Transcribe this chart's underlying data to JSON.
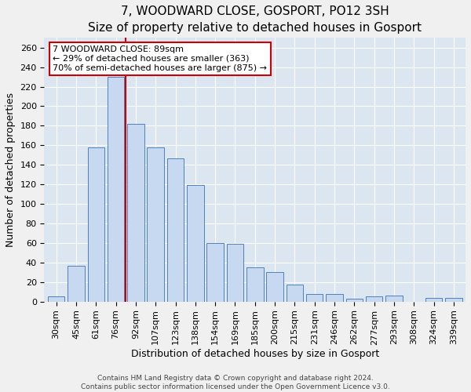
{
  "title": "7, WOODWARD CLOSE, GOSPORT, PO12 3SH",
  "subtitle": "Size of property relative to detached houses in Gosport",
  "xlabel": "Distribution of detached houses by size in Gosport",
  "ylabel": "Number of detached properties",
  "categories": [
    "30sqm",
    "45sqm",
    "61sqm",
    "76sqm",
    "92sqm",
    "107sqm",
    "123sqm",
    "138sqm",
    "154sqm",
    "169sqm",
    "185sqm",
    "200sqm",
    "215sqm",
    "231sqm",
    "246sqm",
    "262sqm",
    "277sqm",
    "293sqm",
    "308sqm",
    "324sqm",
    "339sqm"
  ],
  "values": [
    5,
    37,
    158,
    230,
    182,
    158,
    147,
    119,
    60,
    59,
    35,
    30,
    17,
    8,
    8,
    3,
    5,
    6,
    0,
    4,
    4
  ],
  "bar_color": "#c6d9f0",
  "bar_edge_color": "#4f81bd",
  "annotation_line_bar_index": 3,
  "annotation_text_lines": [
    "7 WOODWARD CLOSE: 89sqm",
    "← 29% of detached houses are smaller (363)",
    "70% of semi-detached houses are larger (875) →"
  ],
  "annotation_box_color": "#ffffff",
  "annotation_box_edge_color": "#cc0000",
  "ylim": [
    0,
    270
  ],
  "yticks": [
    0,
    20,
    40,
    60,
    80,
    100,
    120,
    140,
    160,
    180,
    200,
    220,
    240,
    260
  ],
  "background_color": "#dce6f1",
  "grid_color": "#ffffff",
  "footer_line1": "Contains HM Land Registry data © Crown copyright and database right 2024.",
  "footer_line2": "Contains public sector information licensed under the Open Government Licence v3.0.",
  "red_line_color": "#cc0000",
  "title_fontsize": 11,
  "xlabel_fontsize": 9,
  "ylabel_fontsize": 9,
  "tick_fontsize": 8,
  "annot_fontsize": 8,
  "footer_fontsize": 6.5
}
